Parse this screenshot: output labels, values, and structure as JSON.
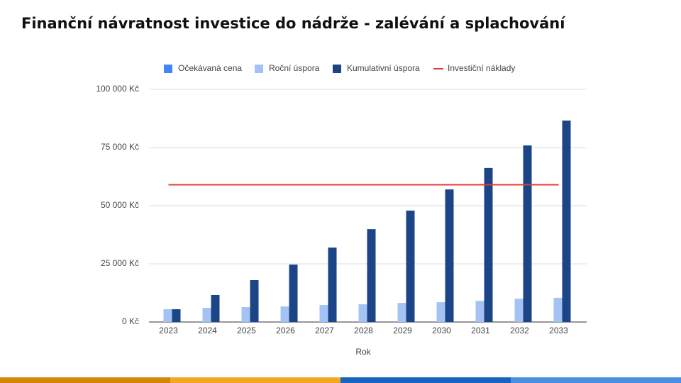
{
  "chart_data": {
    "type": "bar",
    "title": "Finanční návratnost investice do nádrže - zalévání a splachování",
    "x_label": "Rok",
    "categories": [
      "2023",
      "2024",
      "2025",
      "2026",
      "2027",
      "2028",
      "2029",
      "2030",
      "2031",
      "2032",
      "2033"
    ],
    "series": [
      {
        "name": "Očekávaná cena",
        "color": "#4285f4",
        "type": "bar",
        "values": [
          0,
          0,
          0,
          0,
          0,
          0,
          0,
          0,
          0,
          0,
          0
        ]
      },
      {
        "name": "Roční úspora",
        "color": "#a4c2f4",
        "type": "bar",
        "values": [
          5500,
          6100,
          6400,
          6700,
          7300,
          7600,
          8200,
          8500,
          9100,
          10000,
          10400
        ]
      },
      {
        "name": "Kumulativní úspora",
        "color": "#1c4587",
        "type": "bar",
        "values": [
          5500,
          11600,
          18000,
          24700,
          32000,
          39900,
          47900,
          57000,
          66200,
          75900,
          86600
        ]
      },
      {
        "name": "Investiční náklady",
        "color": "#e53935",
        "type": "line",
        "values": [
          59000,
          59000,
          59000,
          59000,
          59000,
          59000,
          59000,
          59000,
          59000,
          59000,
          59000
        ]
      }
    ],
    "ylim": [
      0,
      100000
    ],
    "yticks": [
      {
        "value": 0,
        "label": "0 Kč"
      },
      {
        "value": 25000,
        "label": "25 000 Kč"
      },
      {
        "value": 50000,
        "label": "50 000 Kč"
      },
      {
        "value": 75000,
        "label": "75 000 Kč"
      },
      {
        "value": 100000,
        "label": "100 000 Kč"
      }
    ],
    "grid": true,
    "legend": "top"
  }
}
